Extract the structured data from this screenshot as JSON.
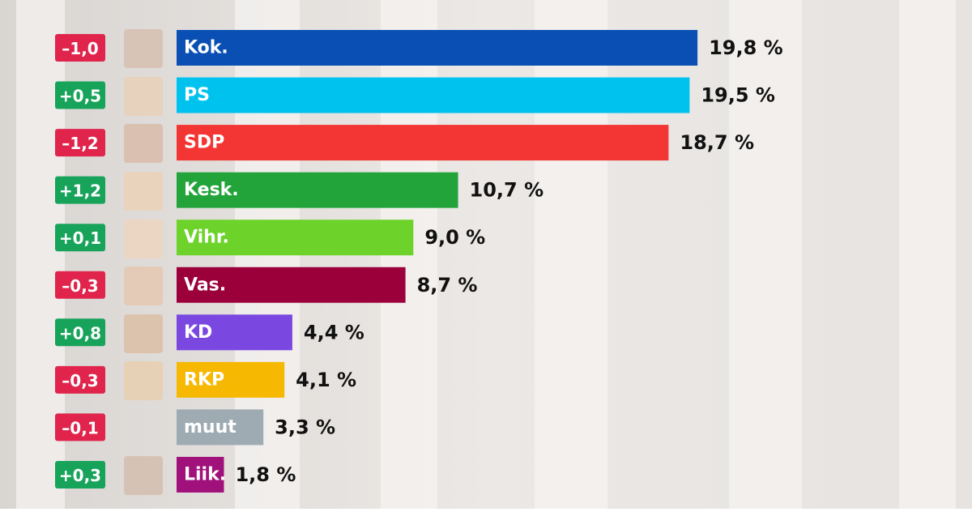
{
  "chart_data": {
    "type": "hbar",
    "categories": [
      "Kok.",
      "PS",
      "SDP",
      "Kesk.",
      "Vihr.",
      "Vas.",
      "KD",
      "RKP",
      "muut",
      "Liik."
    ],
    "values": [
      19.8,
      19.5,
      18.7,
      10.7,
      9.0,
      8.7,
      4.4,
      4.1,
      3.3,
      1.8
    ],
    "value_labels": [
      "19,8 %",
      "19,5 %",
      "18,7 %",
      "10,7 %",
      "9,0 %",
      "8,7 %",
      "4,4 %",
      "4,1 %",
      "3,3 %",
      "1,8 %"
    ],
    "colors": [
      "#0a50b4",
      "#00c2ef",
      "#f33634",
      "#23a43b",
      "#6dd32b",
      "#9b003b",
      "#7a48e0",
      "#f6b800",
      "#9eabb3",
      "#a0117b"
    ],
    "changes": [
      -1.0,
      0.5,
      -1.2,
      1.2,
      0.1,
      -0.3,
      0.8,
      -0.3,
      -0.1,
      0.3
    ],
    "change_labels": [
      "–1,0",
      "+0,5",
      "–1,2",
      "+1,2",
      "+0,1",
      "–0,3",
      "+0,8",
      "–0,3",
      "–0,1",
      "+0,3"
    ],
    "change_colors": {
      "negative": "#e0244c",
      "positive": "#18a35a"
    }
  }
}
